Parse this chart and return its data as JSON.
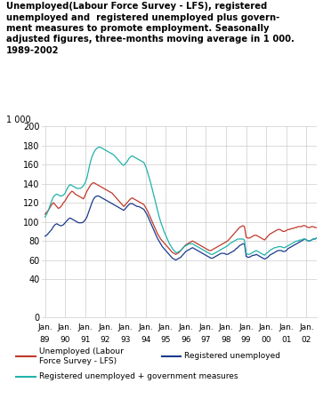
{
  "title": "Unemployed(Labour Force Survey - LFS), registered\nunemployed and  registered unemployed plus govern-\nment measures to promote employment. Seasonally\nadjusted figures, three-months moving average in 1 000.\n1989-2002",
  "ylabel": "1 000",
  "ylim": [
    0,
    200
  ],
  "yticks": [
    0,
    40,
    60,
    80,
    100,
    120,
    140,
    160,
    180,
    200
  ],
  "background_color": "#ffffff",
  "grid_color": "#cccccc",
  "line_lfs_color": "#c0392b",
  "line_reg_color": "#1a3a8c",
  "line_gov_color": "#20b2aa",
  "legend_labels": [
    "Unemployed (Labour\nForce Survey - LFS)",
    "Registered unemployed",
    "Registered unemployed + government measures"
  ],
  "start_year": 1989,
  "end_year": 2002,
  "lfs": [
    108,
    110,
    112,
    115,
    118,
    120,
    118,
    116,
    114,
    115,
    117,
    120,
    122,
    125,
    128,
    130,
    132,
    131,
    129,
    128,
    127,
    126,
    125,
    124,
    128,
    132,
    135,
    138,
    140,
    141,
    140,
    139,
    138,
    137,
    136,
    135,
    134,
    133,
    132,
    131,
    130,
    128,
    126,
    124,
    122,
    120,
    118,
    116,
    118,
    120,
    122,
    124,
    125,
    124,
    123,
    122,
    121,
    120,
    119,
    118,
    115,
    112,
    108,
    104,
    100,
    96,
    92,
    88,
    85,
    82,
    80,
    78,
    76,
    74,
    72,
    70,
    68,
    67,
    66,
    67,
    68,
    70,
    72,
    74,
    76,
    77,
    78,
    79,
    80,
    79,
    78,
    77,
    76,
    75,
    74,
    73,
    72,
    71,
    70,
    70,
    71,
    72,
    73,
    74,
    75,
    76,
    77,
    78,
    79,
    80,
    82,
    84,
    86,
    88,
    90,
    92,
    94,
    95,
    96,
    95,
    84,
    83,
    83,
    84,
    85,
    86,
    86,
    85,
    84,
    83,
    82,
    81,
    83,
    85,
    87,
    88,
    89,
    90,
    91,
    92,
    92,
    91,
    90,
    90,
    91,
    92,
    92,
    93,
    93,
    94,
    94,
    95,
    95,
    95,
    96,
    96,
    95,
    94,
    94,
    95,
    95,
    94,
    94,
    94
  ],
  "reg": [
    85,
    86,
    88,
    90,
    92,
    95,
    97,
    98,
    97,
    96,
    96,
    97,
    99,
    101,
    103,
    104,
    103,
    102,
    101,
    100,
    99,
    99,
    99,
    100,
    102,
    105,
    110,
    115,
    120,
    124,
    126,
    127,
    127,
    126,
    125,
    124,
    123,
    122,
    121,
    120,
    119,
    118,
    117,
    116,
    115,
    114,
    113,
    112,
    114,
    116,
    118,
    119,
    119,
    118,
    117,
    116,
    116,
    115,
    114,
    113,
    110,
    107,
    103,
    99,
    95,
    91,
    87,
    83,
    80,
    77,
    74,
    72,
    70,
    68,
    66,
    64,
    62,
    61,
    60,
    61,
    62,
    63,
    65,
    67,
    69,
    70,
    71,
    72,
    73,
    72,
    71,
    70,
    69,
    68,
    67,
    66,
    65,
    64,
    63,
    62,
    62,
    63,
    64,
    65,
    66,
    67,
    67,
    67,
    66,
    66,
    67,
    68,
    69,
    70,
    72,
    73,
    75,
    76,
    77,
    77,
    64,
    63,
    63,
    64,
    65,
    65,
    66,
    65,
    64,
    63,
    62,
    61,
    62,
    63,
    65,
    66,
    67,
    68,
    69,
    70,
    70,
    70,
    69,
    69,
    70,
    72,
    73,
    74,
    75,
    76,
    77,
    78,
    79,
    80,
    81,
    82,
    81,
    80,
    80,
    81,
    82,
    82,
    83,
    85
  ],
  "gov": [
    105,
    108,
    112,
    117,
    122,
    126,
    128,
    129,
    128,
    127,
    127,
    128,
    130,
    134,
    137,
    139,
    138,
    137,
    136,
    135,
    135,
    135,
    136,
    138,
    141,
    146,
    154,
    162,
    168,
    172,
    175,
    177,
    178,
    178,
    177,
    176,
    175,
    174,
    173,
    172,
    171,
    170,
    168,
    166,
    164,
    162,
    160,
    159,
    161,
    163,
    166,
    168,
    169,
    168,
    167,
    166,
    165,
    164,
    163,
    162,
    158,
    153,
    147,
    141,
    134,
    127,
    120,
    113,
    106,
    100,
    95,
    90,
    86,
    82,
    78,
    75,
    72,
    70,
    68,
    68,
    69,
    70,
    72,
    74,
    75,
    76,
    77,
    77,
    77,
    76,
    75,
    74,
    73,
    72,
    71,
    70,
    69,
    68,
    67,
    66,
    66,
    67,
    68,
    69,
    70,
    71,
    72,
    73,
    74,
    75,
    77,
    78,
    79,
    80,
    81,
    82,
    82,
    82,
    82,
    81,
    67,
    66,
    66,
    67,
    68,
    69,
    70,
    69,
    68,
    67,
    66,
    65,
    67,
    68,
    70,
    71,
    72,
    73,
    73,
    74,
    74,
    74,
    73,
    73,
    74,
    75,
    76,
    77,
    78,
    79,
    80,
    80,
    81,
    81,
    82,
    82,
    81,
    80,
    80,
    81,
    82,
    82,
    83,
    85
  ]
}
